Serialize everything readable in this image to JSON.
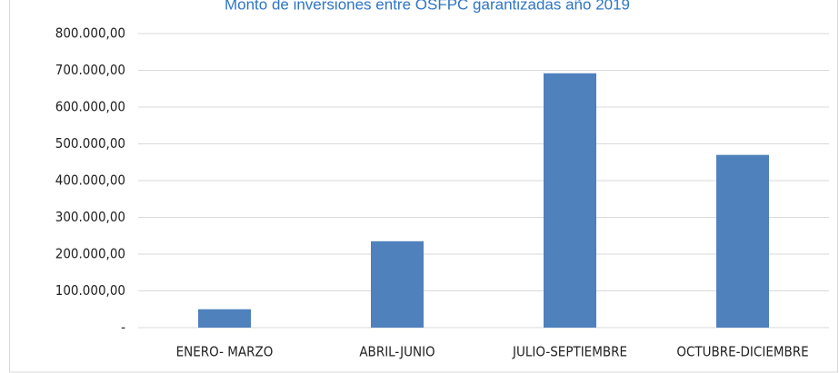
{
  "chart_data": {
    "type": "bar",
    "title": "Monto de inversiones entre OSFPC garantizadas año 2019",
    "categories": [
      "ENERO- MARZO",
      "ABRIL-JUNIO",
      "JULIO-SEPTIEMBRE",
      "OCTUBRE-DICIEMBRE"
    ],
    "values": [
      50000,
      235000,
      692000,
      470000
    ],
    "color": "#4f81bd",
    "ylim": [
      0,
      800000
    ],
    "yticks": [
      {
        "value": 0,
        "label": "-"
      },
      {
        "value": 100000,
        "label": "100.000,00"
      },
      {
        "value": 200000,
        "label": "200.000,00"
      },
      {
        "value": 300000,
        "label": "300.000,00"
      },
      {
        "value": 400000,
        "label": "400.000,00"
      },
      {
        "value": 500000,
        "label": "500.000,00"
      },
      {
        "value": 600000,
        "label": "600.000,00"
      },
      {
        "value": 700000,
        "label": "700.000,00"
      },
      {
        "value": 800000,
        "label": "800.000,00"
      }
    ],
    "grid": true
  }
}
